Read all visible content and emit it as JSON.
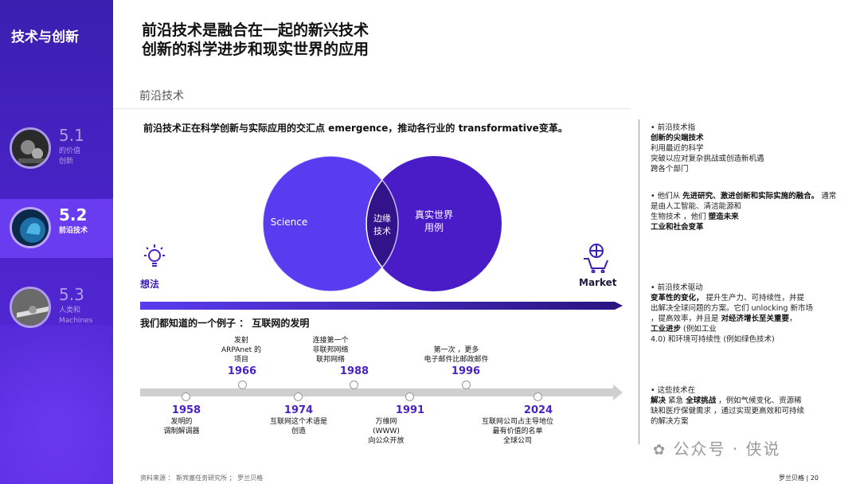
{
  "sidebar": {
    "title": "技术与创新",
    "items": [
      {
        "num": "5.1",
        "sub1": "的价值",
        "sub2": "创新"
      },
      {
        "num": "5.2",
        "sub1": "前沿技术",
        "sub2": ""
      },
      {
        "num": "5.3",
        "sub1": "人类和",
        "sub2": "Machines"
      }
    ]
  },
  "header": {
    "title_line1": "前沿技术是融合在一起的新兴技术",
    "title_line2": "创新的科学进步和现实世界的应用",
    "section": "前沿技术"
  },
  "intro": "前沿技术正在科学创新与实际应用的交汇点 emergence，推动各行业的 transformative变革。",
  "venn": {
    "left": "Science",
    "center1": "边缘",
    "center2": "技术",
    "right1": "真实世界",
    "right2": "用例",
    "idea": "想法",
    "market": "Market"
  },
  "example_heading": "我们都知道的一个例子 ： 互联网的发明",
  "timeline": {
    "above": [
      {
        "year": "1966",
        "l1": "发射",
        "l2": "ARPAnet 的",
        "l3": "项目"
      },
      {
        "year": "1988",
        "l1": "连接第一个",
        "l2": "非联邦网络",
        "l3": "联邦网络"
      },
      {
        "year": "1996",
        "l1": "第一次 ，更多",
        "l2": "电子邮件比邮政邮件",
        "l3": ""
      }
    ],
    "below": [
      {
        "year": "1958",
        "l1": "发明的",
        "l2": "调制解调器",
        "l3": ""
      },
      {
        "year": "1974",
        "l1": "互联网这个术语是",
        "l2": "创造",
        "l3": ""
      },
      {
        "year": "1991",
        "l1": "万维网",
        "l2": "(WWW)",
        "l3": "向公众开放"
      },
      {
        "year": "2024",
        "l1": "互联网公司占主导地位",
        "l2": "最有价值的名单",
        "l3": "全球公司"
      }
    ]
  },
  "right": {
    "b1": {
      "head": "• 前沿技术指",
      "bold": "创新的尖端技术",
      "t1": "利用最近的科学",
      "t2": "突破以应对复杂挑战或创造新机遇",
      "t3": "跨各个部门"
    },
    "b2": {
      "head": "• 他们从",
      "bold1": "先进研究、激进创新和实际实施的融合。",
      "t1": "通常是由人工智能、清洁能源和",
      "t2": "生物技术 ，他们",
      "bold2": "塑造未来",
      "bold3": "工业和社会变革"
    },
    "b3": {
      "head": "• 前沿技术驱动",
      "bold1": "变革性的变化，",
      "t1": "提升生产力、可持续性，并提",
      "t2": "出解决全球问题的方案。它们 unlocking 新市场",
      "t3": "，提高效率，并且是",
      "bold2": "对经济增长至关重要",
      "t4": "，",
      "bold3": "工业进步",
      "t5": "(例如工业",
      "t6": "4.0) 和环境可持续性 (例如绿色技术)"
    },
    "b4": {
      "head": "• 这些技术在",
      "bold1": "解决",
      "t1": "紧急",
      "bold2": "全球挑战",
      "t2": "，例如气候变化、资源稀",
      "t3": "缺和医疗保健需求 ，通过实现更高效和可持续",
      "t4": "的解决方案"
    }
  },
  "footer": {
    "source": "资料来源 ： 斯宾塞任务研究所 ； 罗兰贝格",
    "page": "罗兰贝格 | 20",
    "watermark": "公众号 · 侠说"
  },
  "colors": {
    "accent": "#4a23c8",
    "circle_left": "#5a3cf0",
    "circle_right": "#4a1cc8",
    "overlap": "#3a1890"
  }
}
